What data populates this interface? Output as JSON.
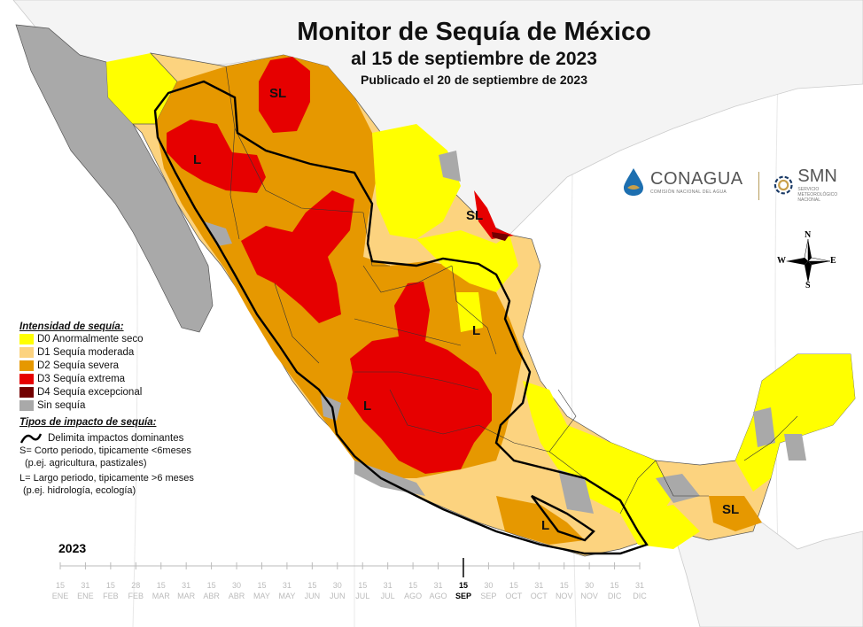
{
  "title": "Monitor de Sequía de México",
  "subtitle": "al 15 de septiembre de 2023",
  "published": "Publicado el 20 de septiembre de 2023",
  "logos": {
    "conagua": "CONAGUA",
    "conagua_sub": "COMISIÓN NACIONAL DEL AGUA",
    "smn": "SMN",
    "smn_sub": "SERVICIO METEOROLÓGICO NACIONAL"
  },
  "compass": {
    "n": "N",
    "s": "S",
    "e": "E",
    "w": "W"
  },
  "legend": {
    "intensity_title": "Intensidad de sequía:",
    "intensity": [
      {
        "label": "D0 Anormalmente seco",
        "color": "#ffff00"
      },
      {
        "label": "D1 Sequía moderada",
        "color": "#fcd37f"
      },
      {
        "label": "D2 Sequía severa",
        "color": "#e69800"
      },
      {
        "label": "D3 Sequía extrema",
        "color": "#e60000"
      },
      {
        "label": "D4 Sequía excepcional",
        "color": "#730000"
      },
      {
        "label": "Sin sequía",
        "color": "#a9a9a9"
      }
    ],
    "impact_title": "Tipos de impacto de sequía:",
    "impact_line": "Delimita impactos dominantes",
    "impact_s": "S= Corto periodo, tipicamente <6meses",
    "impact_s_ex": "(p.ej. agricultura, pastizales)",
    "impact_l": "L= Largo periodo, tipicamente >6 meses",
    "impact_l_ex": "(p.ej. hidrología, ecología)"
  },
  "map_labels": [
    "SL",
    "L",
    "SL",
    "L",
    "L",
    "L",
    "SL"
  ],
  "timeline": {
    "year": "2023",
    "ticks": [
      {
        "day": "15",
        "month": "ENE"
      },
      {
        "day": "31",
        "month": "ENE"
      },
      {
        "day": "15",
        "month": "FEB"
      },
      {
        "day": "28",
        "month": "FEB"
      },
      {
        "day": "15",
        "month": "MAR"
      },
      {
        "day": "31",
        "month": "MAR"
      },
      {
        "day": "15",
        "month": "ABR"
      },
      {
        "day": "30",
        "month": "ABR"
      },
      {
        "day": "15",
        "month": "MAY"
      },
      {
        "day": "31",
        "month": "MAY"
      },
      {
        "day": "15",
        "month": "JUN"
      },
      {
        "day": "30",
        "month": "JUN"
      },
      {
        "day": "15",
        "month": "JUL"
      },
      {
        "day": "31",
        "month": "JUL"
      },
      {
        "day": "15",
        "month": "AGO"
      },
      {
        "day": "31",
        "month": "AGO"
      },
      {
        "day": "15",
        "month": "SEP"
      },
      {
        "day": "30",
        "month": "SEP"
      },
      {
        "day": "15",
        "month": "OCT"
      },
      {
        "day": "31",
        "month": "OCT"
      },
      {
        "day": "15",
        "month": "NOV"
      },
      {
        "day": "30",
        "month": "NOV"
      },
      {
        "day": "15",
        "month": "DIC"
      },
      {
        "day": "31",
        "month": "DIC"
      }
    ],
    "selected_index": 16
  }
}
